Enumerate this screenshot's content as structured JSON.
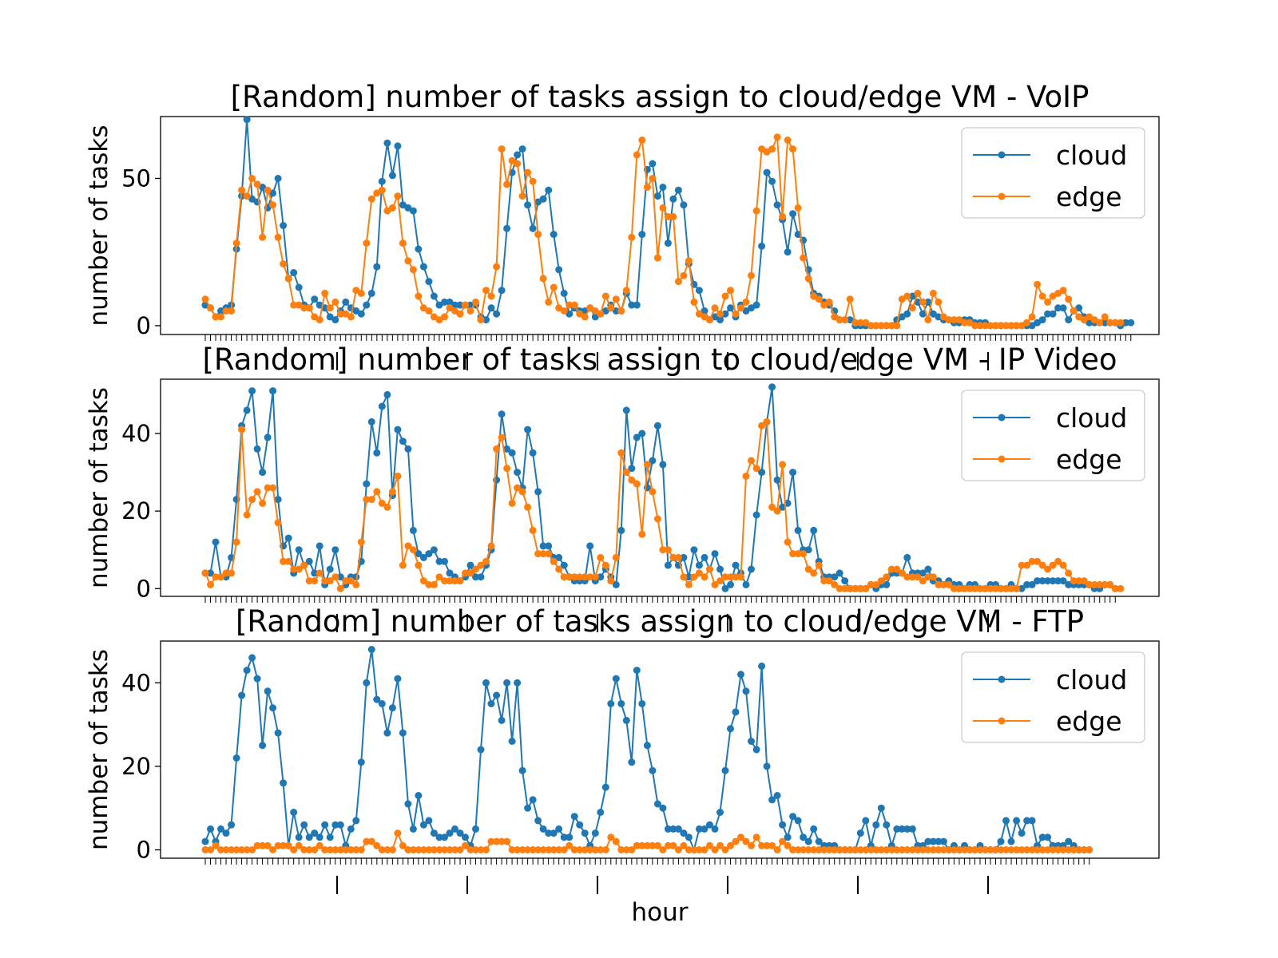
{
  "chart_data": [
    {
      "type": "line",
      "title": "[Random] number of tasks assign to cloud/edge VM - VoIP",
      "ylabel": "number of tasks",
      "ylim": [
        -3,
        71
      ],
      "yticks": [
        0,
        50
      ],
      "legend": "top-right",
      "series": [
        {
          "name": "cloud",
          "color": "#1f77b4",
          "values": [
            7,
            6,
            3,
            5,
            6,
            7,
            26,
            44,
            70,
            43,
            42,
            47,
            40,
            45,
            50,
            34,
            16,
            18,
            13,
            7,
            6,
            9,
            7,
            6,
            3,
            2,
            5,
            8,
            6,
            5,
            4,
            7,
            11,
            20,
            49,
            62,
            51,
            61,
            41,
            40,
            39,
            26,
            20,
            15,
            10,
            7,
            8,
            8,
            7,
            7,
            7,
            7,
            7,
            3,
            2,
            6,
            4,
            12,
            33,
            52,
            58,
            60,
            41,
            33,
            42,
            43,
            46,
            31,
            19,
            11,
            4,
            6,
            5,
            5,
            6,
            3,
            4,
            5,
            7,
            5,
            5,
            11,
            7,
            7,
            31,
            53,
            55,
            44,
            47,
            28,
            43,
            46,
            41,
            21,
            14,
            12,
            5,
            2,
            3,
            2,
            4,
            6,
            3,
            7,
            5,
            6,
            7,
            27,
            52,
            49,
            41,
            36,
            25,
            38,
            31,
            29,
            19,
            11,
            10,
            8,
            7,
            5,
            2,
            2,
            2,
            0,
            0,
            0,
            0,
            0,
            0,
            0,
            0,
            2,
            3,
            4,
            10,
            8,
            4,
            8,
            4,
            3,
            2,
            2,
            1,
            1,
            2,
            2,
            1,
            1,
            1,
            0,
            0,
            0,
            0,
            0,
            0,
            0,
            0,
            0,
            1,
            2,
            4,
            4,
            6,
            6,
            2,
            5,
            6,
            3,
            1,
            1,
            1,
            1,
            1,
            1,
            0,
            1,
            1
          ]
        },
        {
          "name": "edge",
          "color": "#ff7f0e",
          "values": [
            9,
            6,
            3,
            3,
            5,
            5,
            28,
            46,
            44,
            50,
            48,
            30,
            46,
            41,
            30,
            21,
            16,
            7,
            7,
            6,
            6,
            3,
            2,
            11,
            6,
            8,
            4,
            4,
            3,
            12,
            11,
            28,
            43,
            45,
            46,
            39,
            40,
            44,
            28,
            22,
            19,
            10,
            6,
            5,
            3,
            2,
            3,
            6,
            5,
            4,
            7,
            5,
            8,
            2,
            12,
            10,
            20,
            60,
            48,
            56,
            55,
            44,
            52,
            49,
            31,
            16,
            8,
            13,
            6,
            5,
            7,
            7,
            4,
            3,
            6,
            5,
            4,
            10,
            6,
            9,
            5,
            12,
            30,
            58,
            63,
            47,
            50,
            23,
            40,
            37,
            37,
            15,
            17,
            22,
            8,
            4,
            3,
            2,
            6,
            4,
            10,
            12,
            4,
            6,
            8,
            17,
            39,
            60,
            59,
            60,
            64,
            37,
            63,
            60,
            40,
            23,
            16,
            10,
            9,
            7,
            8,
            3,
            2,
            2,
            9,
            1,
            1,
            1,
            0,
            0,
            0,
            0,
            0,
            0,
            9,
            10,
            6,
            11,
            8,
            2,
            11,
            8,
            3,
            2,
            2,
            2,
            1,
            1,
            0,
            0,
            0,
            0,
            0,
            0,
            0,
            0,
            0,
            0,
            1,
            3,
            14,
            10,
            8,
            10,
            11,
            12,
            9,
            5,
            3,
            2,
            3,
            2,
            1,
            3,
            1,
            1,
            1
          ]
        }
      ]
    },
    {
      "type": "line",
      "title": "[Random] number of tasks assign to cloud/edge VM - IP Video",
      "ylabel": "number of tasks",
      "ylim": [
        -2,
        54
      ],
      "yticks": [
        0,
        20,
        40
      ],
      "legend": "top-right",
      "series": [
        {
          "name": "cloud",
          "color": "#1f77b4",
          "values": [
            4,
            4,
            12,
            3,
            3,
            8,
            23,
            42,
            46,
            51,
            36,
            30,
            39,
            51,
            23,
            11,
            13,
            4,
            10,
            6,
            7,
            4,
            11,
            1,
            5,
            10,
            3,
            1,
            3,
            3,
            7,
            27,
            43,
            35,
            47,
            50,
            24,
            41,
            38,
            36,
            15,
            9,
            8,
            9,
            10,
            7,
            7,
            4,
            3,
            2,
            3,
            6,
            3,
            3,
            6,
            10,
            28,
            45,
            36,
            35,
            30,
            26,
            41,
            35,
            25,
            11,
            11,
            8,
            8,
            6,
            3,
            2,
            2,
            2,
            11,
            2,
            3,
            5,
            3,
            1,
            15,
            46,
            31,
            39,
            40,
            26,
            33,
            42,
            32,
            6,
            8,
            6,
            8,
            3,
            10,
            6,
            8,
            5,
            9,
            5,
            0,
            1,
            6,
            4,
            1,
            5,
            19,
            30,
            43,
            52,
            28,
            21,
            22,
            30,
            15,
            10,
            10,
            15,
            7,
            3,
            3,
            3,
            4,
            2,
            0,
            0,
            0,
            0,
            1,
            0,
            1,
            1,
            4,
            4,
            4,
            8,
            4,
            4,
            4,
            5,
            2,
            2,
            1,
            2,
            1,
            1,
            0,
            1,
            1,
            0,
            0,
            1,
            1,
            0,
            0,
            1,
            0,
            0,
            1,
            1,
            2,
            2,
            2,
            2,
            2,
            2,
            1,
            1,
            1,
            1,
            1,
            0,
            0,
            1,
            1,
            0
          ]
        },
        {
          "name": "edge",
          "color": "#ff7f0e",
          "values": [
            4,
            1,
            3,
            3,
            4,
            4,
            12,
            41,
            19,
            23,
            25,
            22,
            26,
            26,
            17,
            7,
            7,
            5,
            5,
            6,
            2,
            2,
            4,
            2,
            2,
            3,
            0,
            2,
            2,
            1,
            12,
            23,
            23,
            25,
            22,
            21,
            25,
            29,
            6,
            11,
            10,
            6,
            2,
            1,
            1,
            3,
            2,
            2,
            2,
            2,
            4,
            4,
            5,
            6,
            7,
            11,
            36,
            39,
            31,
            22,
            26,
            25,
            21,
            15,
            9,
            9,
            9,
            7,
            5,
            3,
            3,
            3,
            3,
            3,
            3,
            3,
            8,
            6,
            2,
            8,
            35,
            30,
            28,
            27,
            14,
            32,
            25,
            18,
            10,
            10,
            8,
            8,
            3,
            1,
            3,
            4,
            3,
            5,
            1,
            2,
            3,
            3,
            3,
            3,
            29,
            33,
            31,
            42,
            43,
            21,
            20,
            32,
            12,
            9,
            9,
            9,
            5,
            4,
            6,
            2,
            2,
            1,
            0,
            0,
            0,
            0,
            0,
            0,
            1,
            1,
            2,
            3,
            5,
            5,
            4,
            3,
            3,
            3,
            2,
            3,
            3,
            1,
            1,
            1,
            0,
            0,
            0,
            0,
            0,
            0,
            0,
            0,
            0,
            0,
            0,
            0,
            0,
            6,
            6,
            7,
            7,
            6,
            5,
            6,
            7,
            6,
            4,
            2,
            2,
            2,
            1,
            1,
            1,
            1,
            1,
            0,
            0
          ]
        }
      ]
    },
    {
      "type": "line",
      "title": "[Random] number of tasks assign to cloud/edge VM - FTP",
      "ylabel": "number of tasks",
      "xlabel": "hour",
      "ylim": [
        -2,
        50
      ],
      "yticks": [
        0,
        20,
        40
      ],
      "legend": "top-right",
      "series": [
        {
          "name": "cloud",
          "color": "#1f77b4",
          "values": [
            2,
            5,
            2,
            5,
            4,
            6,
            22,
            37,
            43,
            46,
            41,
            25,
            38,
            34,
            28,
            16,
            1,
            9,
            3,
            6,
            3,
            4,
            3,
            6,
            3,
            6,
            6,
            1,
            5,
            7,
            21,
            40,
            48,
            36,
            35,
            28,
            34,
            41,
            28,
            11,
            5,
            13,
            6,
            7,
            4,
            3,
            3,
            4,
            5,
            4,
            3,
            1,
            5,
            24,
            40,
            35,
            37,
            31,
            40,
            26,
            40,
            19,
            10,
            12,
            7,
            5,
            4,
            4,
            5,
            3,
            3,
            8,
            6,
            4,
            1,
            4,
            9,
            15,
            35,
            41,
            35,
            31,
            21,
            43,
            35,
            25,
            19,
            11,
            10,
            5,
            5,
            5,
            4,
            3,
            0,
            5,
            5,
            6,
            5,
            9,
            19,
            29,
            33,
            42,
            38,
            26,
            24,
            44,
            20,
            12,
            13,
            6,
            3,
            8,
            7,
            3,
            2,
            5,
            2,
            1,
            1,
            1,
            0,
            0,
            0,
            0,
            4,
            7,
            1,
            6,
            10,
            6,
            1,
            5,
            5,
            5,
            5,
            1,
            1,
            2,
            2,
            2,
            2,
            0,
            1,
            0,
            1,
            0,
            0,
            1,
            0,
            0,
            0,
            2,
            7,
            2,
            7,
            4,
            7,
            7,
            1,
            3,
            3,
            1,
            1,
            1,
            2,
            1,
            0,
            0,
            0
          ]
        },
        {
          "name": "edge",
          "color": "#ff7f0e",
          "values": [
            0,
            0,
            1,
            0,
            0,
            0,
            0,
            0,
            0,
            0,
            1,
            1,
            1,
            0,
            1,
            1,
            1,
            0,
            1,
            0,
            0,
            0,
            1,
            0,
            0,
            0,
            0,
            0,
            0,
            0,
            0,
            2,
            2,
            1,
            0,
            0,
            0,
            4,
            1,
            0,
            0,
            0,
            0,
            0,
            0,
            0,
            0,
            0,
            0,
            0,
            1,
            0,
            0,
            0,
            0,
            2,
            2,
            2,
            2,
            0,
            0,
            0,
            0,
            0,
            0,
            0,
            0,
            0,
            0,
            0,
            1,
            0,
            0,
            0,
            0,
            0,
            0,
            0,
            3,
            2,
            0,
            0,
            0,
            1,
            1,
            1,
            1,
            1,
            0,
            1,
            1,
            0,
            1,
            0,
            0,
            0,
            0,
            1,
            0,
            1,
            0,
            1,
            2,
            3,
            2,
            1,
            3,
            1,
            1,
            1,
            0,
            2,
            1,
            0,
            0,
            0,
            0,
            0,
            0,
            0,
            0,
            0,
            0,
            0,
            0,
            0,
            0,
            0,
            0,
            0,
            0,
            0,
            0,
            0,
            0,
            0,
            0,
            0,
            0,
            0,
            0,
            0,
            0,
            0,
            0,
            0,
            0,
            0,
            0,
            0,
            0,
            0,
            0,
            0,
            0,
            0,
            0,
            0,
            0,
            0,
            0,
            0,
            0,
            0,
            0,
            0,
            0,
            0,
            0,
            0,
            0
          ]
        }
      ]
    }
  ]
}
